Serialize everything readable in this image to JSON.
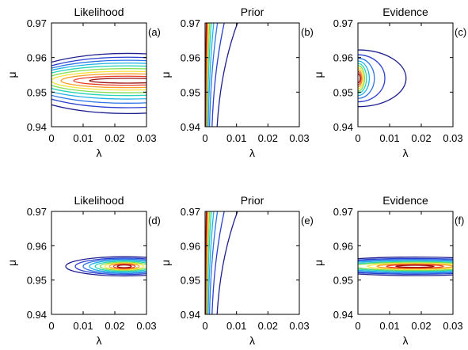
{
  "chart_data": [
    {
      "type": "line",
      "subtype": "contour",
      "tag": "(a)",
      "title": "Likelihood",
      "xlabel": "λ",
      "ylabel": "μ",
      "xlim": [
        0,
        0.03
      ],
      "ylim": [
        0.94,
        0.97
      ],
      "xticks": [
        "0",
        "0.01",
        "0.02",
        "0.03"
      ],
      "yticks": [
        "0.94",
        "0.95",
        "0.96",
        "0.97"
      ],
      "grid": false,
      "contours": [
        {
          "level": 1,
          "center": [
            0.024,
            0.9525
          ],
          "half_width": [
            0.034,
            0.0087
          ],
          "color": "#1f1f8f"
        },
        {
          "level": 2,
          "center": [
            0.024,
            0.9528
          ],
          "half_width": [
            0.032,
            0.0073
          ],
          "color": "#2a3fcf"
        },
        {
          "level": 3,
          "center": [
            0.024,
            0.953
          ],
          "half_width": [
            0.031,
            0.0062
          ],
          "color": "#2f74e6"
        },
        {
          "level": 4,
          "center": [
            0.024,
            0.9532
          ],
          "half_width": [
            0.03,
            0.0052
          ],
          "color": "#21b1e8"
        },
        {
          "level": 5,
          "center": [
            0.024,
            0.9533
          ],
          "half_width": [
            0.028,
            0.0043
          ],
          "color": "#27d3b8"
        },
        {
          "level": 6,
          "center": [
            0.024,
            0.9533
          ],
          "half_width": [
            0.026,
            0.0035
          ],
          "color": "#7fde50"
        },
        {
          "level": 7,
          "center": [
            0.024,
            0.9533
          ],
          "half_width": [
            0.024,
            0.0027
          ],
          "color": "#f5e33a"
        },
        {
          "level": 8,
          "center": [
            0.024,
            0.9533
          ],
          "half_width": [
            0.021,
            0.002
          ],
          "color": "#f59b27"
        },
        {
          "level": 9,
          "center": [
            0.024,
            0.9533
          ],
          "half_width": [
            0.017,
            0.0013
          ],
          "color": "#e8402b"
        },
        {
          "level": 10,
          "center": [
            0.024,
            0.9533
          ],
          "half_width": [
            0.012,
            0.0007
          ],
          "color": "#9a1010"
        }
      ]
    },
    {
      "type": "line",
      "subtype": "contour",
      "tag": "(b)",
      "title": "Prior",
      "xlabel": "λ",
      "ylabel": "μ",
      "xlim": [
        0,
        0.03
      ],
      "ylim": [
        0.94,
        0.97
      ],
      "xticks": [
        "0",
        "0.01",
        "0.02",
        "0.03"
      ],
      "yticks": [
        "0.94",
        "0.95",
        "0.96",
        "0.97"
      ],
      "grid": false,
      "prior_curves": [
        {
          "level": 1,
          "x_at_bottom": 0.0038,
          "x_at_top": 0.0105,
          "color": "#1f1f8f"
        },
        {
          "level": 2,
          "x_at_bottom": 0.0022,
          "x_at_top": 0.0062,
          "color": "#2a3fcf"
        },
        {
          "level": 3,
          "x_at_bottom": 0.0014,
          "x_at_top": 0.004,
          "color": "#2f74e6"
        },
        {
          "level": 4,
          "x_at_bottom": 0.001,
          "x_at_top": 0.0028,
          "color": "#21b1e8"
        },
        {
          "level": 5,
          "x_at_bottom": 0.0007,
          "x_at_top": 0.002,
          "color": "#27d3b8"
        },
        {
          "level": 6,
          "x_at_bottom": 0.0005,
          "x_at_top": 0.0015,
          "color": "#7fde50"
        },
        {
          "level": 7,
          "x_at_bottom": 0.0004,
          "x_at_top": 0.0011,
          "color": "#f5e33a"
        },
        {
          "level": 8,
          "x_at_bottom": 0.0003,
          "x_at_top": 0.0008,
          "color": "#f59b27"
        },
        {
          "level": 9,
          "x_at_bottom": 0.0002,
          "x_at_top": 0.0006,
          "color": "#e8402b"
        },
        {
          "level": 10,
          "x_at_bottom": 0.0001,
          "x_at_top": 0.0004,
          "color": "#9a1010"
        }
      ]
    },
    {
      "type": "line",
      "subtype": "contour",
      "tag": "(c)",
      "title": "Evidence",
      "xlabel": "λ",
      "ylabel": "μ",
      "xlim": [
        0,
        0.03
      ],
      "ylim": [
        0.94,
        0.97
      ],
      "xticks": [
        "0",
        "0.01",
        "0.02",
        "0.03"
      ],
      "yticks": [
        "0.94",
        "0.95",
        "0.96",
        "0.97"
      ],
      "grid": false,
      "contours": [
        {
          "level": 1,
          "center": [
            0.0,
            0.954
          ],
          "half_width": [
            0.0152,
            0.0082
          ],
          "color": "#1f1f8f"
        },
        {
          "level": 2,
          "center": [
            0.0,
            0.954
          ],
          "half_width": [
            0.0085,
            0.0068
          ],
          "color": "#2a3fcf"
        },
        {
          "level": 3,
          "center": [
            0.0,
            0.954
          ],
          "half_width": [
            0.0052,
            0.0058
          ],
          "color": "#2f74e6"
        },
        {
          "level": 4,
          "center": [
            0.0,
            0.954
          ],
          "half_width": [
            0.0036,
            0.005
          ],
          "color": "#21b1e8"
        },
        {
          "level": 5,
          "center": [
            0.0,
            0.954
          ],
          "half_width": [
            0.0027,
            0.0043
          ],
          "color": "#27d3b8"
        },
        {
          "level": 6,
          "center": [
            0.0,
            0.954
          ],
          "half_width": [
            0.0021,
            0.0037
          ],
          "color": "#7fde50"
        },
        {
          "level": 7,
          "center": [
            0.0,
            0.954
          ],
          "half_width": [
            0.0017,
            0.0031
          ],
          "color": "#f5e33a"
        },
        {
          "level": 8,
          "center": [
            0.0,
            0.954
          ],
          "half_width": [
            0.0013,
            0.0025
          ],
          "color": "#f59b27"
        },
        {
          "level": 9,
          "center": [
            0.0,
            0.954
          ],
          "half_width": [
            0.001,
            0.0019
          ],
          "color": "#e8402b"
        },
        {
          "level": 10,
          "center": [
            0.0,
            0.954
          ],
          "half_width": [
            0.0007,
            0.0013
          ],
          "color": "#9a1010"
        }
      ]
    },
    {
      "type": "line",
      "subtype": "contour",
      "tag": "(d)",
      "title": "Likelihood",
      "xlabel": "λ",
      "ylabel": "μ",
      "xlim": [
        0,
        0.03
      ],
      "ylim": [
        0.94,
        0.97
      ],
      "xticks": [
        "0",
        "0.01",
        "0.02",
        "0.03"
      ],
      "yticks": [
        "0.94",
        "0.95",
        "0.96",
        "0.97"
      ],
      "grid": false,
      "contours": [
        {
          "level": 1,
          "center": [
            0.023,
            0.954
          ],
          "half_width": [
            0.0185,
            0.0028
          ],
          "color": "#1f1f8f"
        },
        {
          "level": 2,
          "center": [
            0.023,
            0.954
          ],
          "half_width": [
            0.0155,
            0.0024
          ],
          "color": "#2a3fcf"
        },
        {
          "level": 3,
          "center": [
            0.023,
            0.954
          ],
          "half_width": [
            0.013,
            0.0021
          ],
          "color": "#2f74e6"
        },
        {
          "level": 4,
          "center": [
            0.023,
            0.954
          ],
          "half_width": [
            0.011,
            0.0018
          ],
          "color": "#21b1e8"
        },
        {
          "level": 5,
          "center": [
            0.023,
            0.954
          ],
          "half_width": [
            0.0092,
            0.0015
          ],
          "color": "#27d3b8"
        },
        {
          "level": 6,
          "center": [
            0.023,
            0.954
          ],
          "half_width": [
            0.0076,
            0.0012
          ],
          "color": "#7fde50"
        },
        {
          "level": 7,
          "center": [
            0.023,
            0.954
          ],
          "half_width": [
            0.0061,
            0.001
          ],
          "color": "#f5e33a"
        },
        {
          "level": 8,
          "center": [
            0.023,
            0.954
          ],
          "half_width": [
            0.0047,
            0.0008
          ],
          "color": "#f59b27"
        },
        {
          "level": 9,
          "center": [
            0.023,
            0.954
          ],
          "half_width": [
            0.0034,
            0.0006
          ],
          "color": "#e8402b"
        },
        {
          "level": 10,
          "center": [
            0.023,
            0.954
          ],
          "half_width": [
            0.0022,
            0.0004
          ],
          "color": "#9a1010"
        }
      ]
    },
    {
      "type": "line",
      "subtype": "contour",
      "tag": "(e)",
      "title": "Prior",
      "xlabel": "λ",
      "ylabel": "μ",
      "xlim": [
        0,
        0.03
      ],
      "ylim": [
        0.94,
        0.97
      ],
      "xticks": [
        "0",
        "0.01",
        "0.02",
        "0.03"
      ],
      "yticks": [
        "0.94",
        "0.95",
        "0.96",
        "0.97"
      ],
      "grid": false,
      "prior_curves": [
        {
          "level": 1,
          "x_at_bottom": 0.0038,
          "x_at_top": 0.0105,
          "color": "#1f1f8f"
        },
        {
          "level": 2,
          "x_at_bottom": 0.0022,
          "x_at_top": 0.0062,
          "color": "#2a3fcf"
        },
        {
          "level": 3,
          "x_at_bottom": 0.0014,
          "x_at_top": 0.004,
          "color": "#2f74e6"
        },
        {
          "level": 4,
          "x_at_bottom": 0.001,
          "x_at_top": 0.0028,
          "color": "#21b1e8"
        },
        {
          "level": 5,
          "x_at_bottom": 0.0007,
          "x_at_top": 0.002,
          "color": "#27d3b8"
        },
        {
          "level": 6,
          "x_at_bottom": 0.0005,
          "x_at_top": 0.0015,
          "color": "#7fde50"
        },
        {
          "level": 7,
          "x_at_bottom": 0.0004,
          "x_at_top": 0.0011,
          "color": "#f5e33a"
        },
        {
          "level": 8,
          "x_at_bottom": 0.0003,
          "x_at_top": 0.0008,
          "color": "#f59b27"
        },
        {
          "level": 9,
          "x_at_bottom": 0.0002,
          "x_at_top": 0.0006,
          "color": "#e8402b"
        },
        {
          "level": 10,
          "x_at_bottom": 0.0001,
          "x_at_top": 0.0004,
          "color": "#9a1010"
        }
      ]
    },
    {
      "type": "line",
      "subtype": "contour",
      "tag": "(f)",
      "title": "Evidence",
      "xlabel": "λ",
      "ylabel": "μ",
      "xlim": [
        0,
        0.03
      ],
      "ylim": [
        0.94,
        0.97
      ],
      "xticks": [
        "0",
        "0.01",
        "0.02",
        "0.03"
      ],
      "yticks": [
        "0.94",
        "0.95",
        "0.96",
        "0.97"
      ],
      "grid": false,
      "contours": [
        {
          "level": 1,
          "center": [
            0.018,
            0.954
          ],
          "half_width": [
            0.032,
            0.0027
          ],
          "color": "#1f1f8f"
        },
        {
          "level": 2,
          "center": [
            0.018,
            0.954
          ],
          "half_width": [
            0.03,
            0.0023
          ],
          "color": "#2a3fcf"
        },
        {
          "level": 3,
          "center": [
            0.018,
            0.954
          ],
          "half_width": [
            0.028,
            0.002
          ],
          "color": "#2f74e6"
        },
        {
          "level": 4,
          "center": [
            0.018,
            0.954
          ],
          "half_width": [
            0.025,
            0.0017
          ],
          "color": "#21b1e8"
        },
        {
          "level": 5,
          "center": [
            0.018,
            0.954
          ],
          "half_width": [
            0.022,
            0.0014
          ],
          "color": "#27d3b8"
        },
        {
          "level": 6,
          "center": [
            0.018,
            0.954
          ],
          "half_width": [
            0.019,
            0.0012
          ],
          "color": "#7fde50"
        },
        {
          "level": 7,
          "center": [
            0.018,
            0.954
          ],
          "half_width": [
            0.015,
            0.0009
          ],
          "color": "#f5e33a"
        },
        {
          "level": 8,
          "center": [
            0.018,
            0.954
          ],
          "half_width": [
            0.012,
            0.0007
          ],
          "color": "#f59b27"
        },
        {
          "level": 9,
          "center": [
            0.018,
            0.954
          ],
          "half_width": [
            0.009,
            0.0005
          ],
          "color": "#e8402b"
        },
        {
          "level": 10,
          "center": [
            0.018,
            0.954
          ],
          "half_width": [
            0.006,
            0.0003
          ],
          "color": "#9a1010"
        }
      ]
    }
  ]
}
